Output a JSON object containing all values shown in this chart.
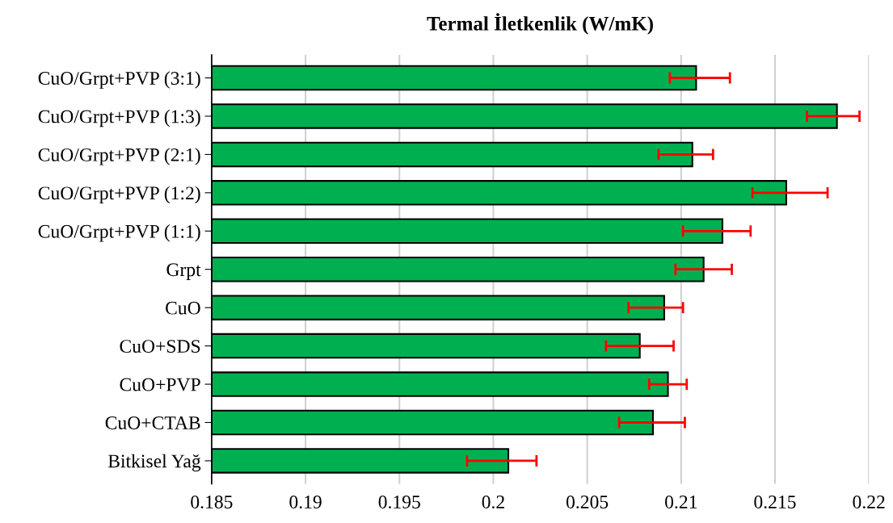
{
  "chart_data": {
    "type": "bar",
    "orientation": "horizontal",
    "title": "Termal İletkenlik (W/mK)",
    "categories": [
      "CuO/Grpt+PVP (3:1)",
      "CuO/Grpt+PVP (1:3)",
      "CuO/Grpt+PVP (2:1)",
      "CuO/Grpt+PVP (1:2)",
      "CuO/Grpt+PVP (1:1)",
      "Grpt",
      "CuO",
      "CuO+SDS",
      "CuO+PVP",
      "CuO+CTAB",
      "Bitkisel Yağ"
    ],
    "values": [
      0.2108,
      0.2183,
      0.2106,
      0.2156,
      0.2122,
      0.2112,
      0.2091,
      0.2078,
      0.2093,
      0.2085,
      0.2008
    ],
    "errors": [
      [
        0.2094,
        0.2126
      ],
      [
        0.2167,
        0.2195
      ],
      [
        0.2088,
        0.2117
      ],
      [
        0.2138,
        0.2178
      ],
      [
        0.2101,
        0.2137
      ],
      [
        0.2097,
        0.2127
      ],
      [
        0.2072,
        0.2101
      ],
      [
        0.206,
        0.2096
      ],
      [
        0.2083,
        0.2103
      ],
      [
        0.2067,
        0.2102
      ],
      [
        0.1986,
        0.2023
      ]
    ],
    "color": "#00b050",
    "xlim": [
      0.185,
      0.22
    ],
    "xticks": [
      0.185,
      0.19,
      0.195,
      0.2,
      0.205,
      0.21,
      0.215,
      0.22
    ],
    "grid": "x"
  }
}
